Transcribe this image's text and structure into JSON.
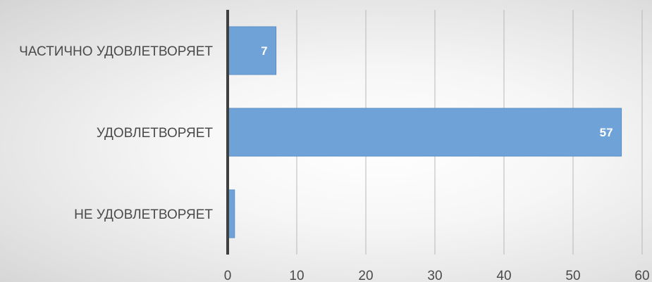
{
  "chart_data": {
    "type": "bar",
    "orientation": "horizontal",
    "categories": [
      "ЧАСТИЧНО УДОВЛЕТВОРЯЕТ",
      "УДОВЛЕТВОРЯЕТ",
      "НЕ УДОВЛЕТВОРЯЕТ"
    ],
    "values": [
      7,
      57,
      1
    ],
    "data_labels": [
      "7",
      "57",
      ""
    ],
    "x_ticks": [
      "0",
      "10",
      "20",
      "30",
      "40",
      "50",
      "60"
    ],
    "xlim": [
      0,
      60
    ],
    "title": "",
    "xlabel": "",
    "ylabel": "",
    "grid": "vertical",
    "legend": "none",
    "bar_color": "#6fa3d8",
    "bar_edge_color": "#5b8fc6",
    "axis_color": "#404040",
    "grid_color": "#b8b8b8"
  }
}
